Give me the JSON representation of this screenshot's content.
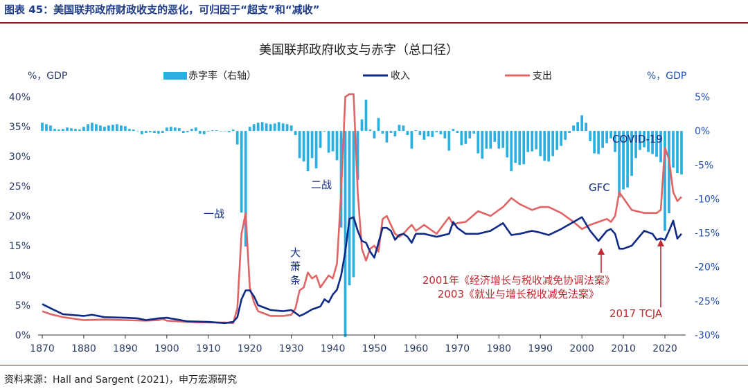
{
  "figure_title": "图表 45：美国联邦政府财政收支的恶化，可归因于“超支”和“减收”",
  "source": "资料来源：Hall and Sargent (2021)，申万宏源研究",
  "colors": {
    "deficit": "#2ab0e0",
    "revenue": "#0e2a84",
    "spending": "#e06464",
    "axis_left": "#2a3a66",
    "axis_right": "#1f4fb0",
    "title_blue": "#1f3c88",
    "rule_red": "#8a1c24",
    "annotation_red": "#c0282f"
  },
  "chart_data": {
    "type": "bar+line",
    "title": "美国联邦政府收支与赤字（总口径）",
    "left_unit": "%，GDP",
    "right_unit": "%，GDP",
    "legend": [
      {
        "key": "deficit",
        "label": "赤字率（右轴）",
        "symbol": "bar"
      },
      {
        "key": "revenue",
        "label": "收入",
        "symbol": "line"
      },
      {
        "key": "spending",
        "label": "支出",
        "symbol": "line"
      }
    ],
    "x_ticks": [
      "1870",
      "1880",
      "1890",
      "1900",
      "1910",
      "1920",
      "1930",
      "1940",
      "1950",
      "1960",
      "1970",
      "1980",
      "1990",
      "2000",
      "2010",
      "2020"
    ],
    "x_range": [
      1869,
      2025
    ],
    "y_left": {
      "range": [
        0,
        40
      ],
      "ticks": [
        "0%",
        "5%",
        "10%",
        "15%",
        "20%",
        "25%",
        "30%",
        "35%",
        "40%"
      ]
    },
    "y_right": {
      "range": [
        -30,
        5
      ],
      "ticks": [
        "-30%",
        "-25%",
        "-20%",
        "-15%",
        "-10%",
        "-5%",
        "0%",
        "5%"
      ]
    },
    "series": {
      "revenue": [
        [
          1870,
          5.2
        ],
        [
          1872,
          4.5
        ],
        [
          1875,
          3.5
        ],
        [
          1880,
          3.2
        ],
        [
          1882,
          3.4
        ],
        [
          1885,
          3.0
        ],
        [
          1890,
          2.9
        ],
        [
          1893,
          2.8
        ],
        [
          1895,
          2.5
        ],
        [
          1898,
          2.8
        ],
        [
          1900,
          2.9
        ],
        [
          1905,
          2.3
        ],
        [
          1910,
          2.2
        ],
        [
          1914,
          2.0
        ],
        [
          1916,
          2.2
        ],
        [
          1917,
          3.0
        ],
        [
          1918,
          6.0
        ],
        [
          1919,
          7.5
        ],
        [
          1920,
          7.5
        ],
        [
          1921,
          6.5
        ],
        [
          1922,
          5.0
        ],
        [
          1925,
          4.2
        ],
        [
          1928,
          4.0
        ],
        [
          1930,
          4.2
        ],
        [
          1932,
          3.2
        ],
        [
          1933,
          3.5
        ],
        [
          1935,
          4.3
        ],
        [
          1937,
          4.8
        ],
        [
          1938,
          6.0
        ],
        [
          1939,
          5.5
        ],
        [
          1940,
          6.8
        ],
        [
          1941,
          7.6
        ],
        [
          1942,
          10.0
        ],
        [
          1943,
          14.0
        ],
        [
          1944,
          19.5
        ],
        [
          1945,
          19.8
        ],
        [
          1946,
          17.5
        ],
        [
          1947,
          15.8
        ],
        [
          1948,
          15.5
        ],
        [
          1949,
          14.0
        ],
        [
          1950,
          13.0
        ],
        [
          1951,
          15.5
        ],
        [
          1952,
          18.0
        ],
        [
          1953,
          18.0
        ],
        [
          1954,
          17.5
        ],
        [
          1955,
          16.0
        ],
        [
          1956,
          16.8
        ],
        [
          1957,
          17.0
        ],
        [
          1958,
          16.5
        ],
        [
          1959,
          15.5
        ],
        [
          1960,
          17.0
        ],
        [
          1962,
          17.0
        ],
        [
          1965,
          16.5
        ],
        [
          1968,
          17.0
        ],
        [
          1969,
          19.0
        ],
        [
          1970,
          18.0
        ],
        [
          1972,
          17.0
        ],
        [
          1975,
          17.0
        ],
        [
          1978,
          17.5
        ],
        [
          1981,
          18.8
        ],
        [
          1983,
          16.8
        ],
        [
          1985,
          17.0
        ],
        [
          1988,
          17.5
        ],
        [
          1990,
          17.2
        ],
        [
          1992,
          16.8
        ],
        [
          1995,
          17.8
        ],
        [
          1998,
          19.0
        ],
        [
          2000,
          19.8
        ],
        [
          2002,
          17.5
        ],
        [
          2004,
          15.8
        ],
        [
          2006,
          17.5
        ],
        [
          2007,
          17.8
        ],
        [
          2008,
          17.0
        ],
        [
          2009,
          14.5
        ],
        [
          2010,
          14.5
        ],
        [
          2012,
          15.0
        ],
        [
          2015,
          17.5
        ],
        [
          2017,
          17.0
        ],
        [
          2018,
          16.0
        ],
        [
          2019,
          16.2
        ],
        [
          2020,
          16.0
        ],
        [
          2021,
          17.5
        ],
        [
          2022,
          19.2
        ],
        [
          2023,
          16.2
        ],
        [
          2024,
          17.0
        ]
      ],
      "spending": [
        [
          1870,
          4.0
        ],
        [
          1872,
          3.5
        ],
        [
          1875,
          3.0
        ],
        [
          1880,
          2.5
        ],
        [
          1885,
          2.6
        ],
        [
          1890,
          2.5
        ],
        [
          1895,
          2.4
        ],
        [
          1898,
          2.5
        ],
        [
          1899,
          2.7
        ],
        [
          1900,
          2.4
        ],
        [
          1905,
          2.2
        ],
        [
          1910,
          2.1
        ],
        [
          1914,
          2.1
        ],
        [
          1916,
          2.0
        ],
        [
          1917,
          4.5
        ],
        [
          1918,
          17.0
        ],
        [
          1919,
          20.5
        ],
        [
          1920,
          8.0
        ],
        [
          1921,
          5.5
        ],
        [
          1922,
          4.0
        ],
        [
          1925,
          3.2
        ],
        [
          1928,
          3.2
        ],
        [
          1930,
          3.4
        ],
        [
          1931,
          4.5
        ],
        [
          1932,
          7.5
        ],
        [
          1933,
          8.0
        ],
        [
          1934,
          10.5
        ],
        [
          1935,
          9.5
        ],
        [
          1936,
          10.0
        ],
        [
          1937,
          8.0
        ],
        [
          1938,
          9.0
        ],
        [
          1939,
          10.0
        ],
        [
          1940,
          9.5
        ],
        [
          1941,
          12.0
        ],
        [
          1942,
          24.0
        ],
        [
          1943,
          40.0
        ],
        [
          1944,
          41.5
        ],
        [
          1945,
          40.5
        ],
        [
          1946,
          24.0
        ],
        [
          1947,
          14.5
        ],
        [
          1948,
          12.5
        ],
        [
          1949,
          14.5
        ],
        [
          1950,
          15.0
        ],
        [
          1951,
          14.0
        ],
        [
          1952,
          19.5
        ],
        [
          1953,
          20.0
        ],
        [
          1954,
          18.5
        ],
        [
          1955,
          17.0
        ],
        [
          1956,
          16.5
        ],
        [
          1957,
          17.0
        ],
        [
          1958,
          17.8
        ],
        [
          1959,
          18.5
        ],
        [
          1960,
          17.5
        ],
        [
          1962,
          18.5
        ],
        [
          1965,
          17.0
        ],
        [
          1968,
          19.8
        ],
        [
          1969,
          18.5
        ],
        [
          1970,
          18.8
        ],
        [
          1972,
          19.0
        ],
        [
          1975,
          20.8
        ],
        [
          1978,
          20.0
        ],
        [
          1981,
          21.5
        ],
        [
          1983,
          23.0
        ],
        [
          1985,
          22.0
        ],
        [
          1988,
          21.0
        ],
        [
          1990,
          21.5
        ],
        [
          1992,
          21.5
        ],
        [
          1995,
          20.5
        ],
        [
          1998,
          19.0
        ],
        [
          2000,
          17.8
        ],
        [
          2002,
          18.5
        ],
        [
          2004,
          19.0
        ],
        [
          2006,
          19.5
        ],
        [
          2007,
          19.0
        ],
        [
          2008,
          20.0
        ],
        [
          2009,
          24.0
        ],
        [
          2010,
          23.0
        ],
        [
          2012,
          21.0
        ],
        [
          2015,
          20.5
        ],
        [
          2018,
          20.5
        ],
        [
          2019,
          21.0
        ],
        [
          2020,
          31.5
        ],
        [
          2021,
          29.5
        ],
        [
          2022,
          24.0
        ],
        [
          2023,
          22.5
        ],
        [
          2024,
          23.2
        ]
      ],
      "deficit": [
        [
          1870,
          1.2
        ],
        [
          1871,
          1.0
        ],
        [
          1872,
          0.8
        ],
        [
          1873,
          0.3
        ],
        [
          1874,
          0.2
        ],
        [
          1875,
          0.3
        ],
        [
          1876,
          0.5
        ],
        [
          1877,
          0.4
        ],
        [
          1878,
          0.3
        ],
        [
          1879,
          0.2
        ],
        [
          1880,
          0.6
        ],
        [
          1881,
          1.0
        ],
        [
          1882,
          1.2
        ],
        [
          1883,
          1.0
        ],
        [
          1884,
          0.8
        ],
        [
          1885,
          0.6
        ],
        [
          1886,
          0.8
        ],
        [
          1887,
          0.9
        ],
        [
          1888,
          1.0
        ],
        [
          1889,
          0.8
        ],
        [
          1890,
          0.7
        ],
        [
          1891,
          0.3
        ],
        [
          1892,
          0.2
        ],
        [
          1893,
          0.0
        ],
        [
          1894,
          -0.5
        ],
        [
          1895,
          -0.3
        ],
        [
          1896,
          -0.2
        ],
        [
          1897,
          -0.3
        ],
        [
          1898,
          -0.4
        ],
        [
          1899,
          -0.3
        ],
        [
          1900,
          0.5
        ],
        [
          1901,
          0.6
        ],
        [
          1902,
          0.5
        ],
        [
          1903,
          0.4
        ],
        [
          1904,
          -0.3
        ],
        [
          1905,
          -0.2
        ],
        [
          1906,
          0.3
        ],
        [
          1907,
          0.5
        ],
        [
          1908,
          -0.4
        ],
        [
          1909,
          -0.5
        ],
        [
          1910,
          -0.1
        ],
        [
          1911,
          0.1
        ],
        [
          1912,
          0.1
        ],
        [
          1913,
          0.0
        ],
        [
          1914,
          0.0
        ],
        [
          1915,
          -0.2
        ],
        [
          1916,
          0.2
        ],
        [
          1917,
          -2.0
        ],
        [
          1918,
          -12.0
        ],
        [
          1919,
          -17.0
        ],
        [
          1920,
          0.6
        ],
        [
          1921,
          1.0
        ],
        [
          1922,
          1.2
        ],
        [
          1923,
          1.3
        ],
        [
          1924,
          1.1
        ],
        [
          1925,
          1.0
        ],
        [
          1926,
          1.1
        ],
        [
          1927,
          1.3
        ],
        [
          1928,
          1.1
        ],
        [
          1929,
          1.0
        ],
        [
          1930,
          0.8
        ],
        [
          1931,
          -0.6
        ],
        [
          1932,
          -4.0
        ],
        [
          1933,
          -4.5
        ],
        [
          1934,
          -5.9
        ],
        [
          1935,
          -4.0
        ],
        [
          1936,
          -5.5
        ],
        [
          1937,
          -2.5
        ],
        [
          1938,
          -0.1
        ],
        [
          1939,
          -3.2
        ],
        [
          1940,
          -3.0
        ],
        [
          1941,
          -4.3
        ],
        [
          1942,
          -14.2
        ],
        [
          1943,
          -30.3
        ],
        [
          1944,
          -22.7
        ],
        [
          1945,
          -21.5
        ],
        [
          1946,
          -7.2
        ],
        [
          1947,
          1.7
        ],
        [
          1948,
          4.6
        ],
        [
          1949,
          0.2
        ],
        [
          1950,
          -1.1
        ],
        [
          1951,
          1.9
        ],
        [
          1952,
          -0.4
        ],
        [
          1953,
          -1.7
        ],
        [
          1954,
          -0.3
        ],
        [
          1955,
          -0.8
        ],
        [
          1956,
          0.9
        ],
        [
          1957,
          0.8
        ],
        [
          1958,
          -0.6
        ],
        [
          1959,
          -2.6
        ],
        [
          1960,
          0.1
        ],
        [
          1961,
          -0.6
        ],
        [
          1962,
          -1.3
        ],
        [
          1963,
          -0.8
        ],
        [
          1964,
          -0.9
        ],
        [
          1965,
          -0.2
        ],
        [
          1966,
          -0.5
        ],
        [
          1967,
          -1.1
        ],
        [
          1968,
          -2.9
        ],
        [
          1969,
          0.3
        ],
        [
          1970,
          -0.3
        ],
        [
          1971,
          -2.1
        ],
        [
          1972,
          -1.9
        ],
        [
          1973,
          -1.1
        ],
        [
          1974,
          -0.4
        ],
        [
          1975,
          -3.3
        ],
        [
          1976,
          -4.1
        ],
        [
          1977,
          -2.6
        ],
        [
          1978,
          -2.6
        ],
        [
          1979,
          -1.6
        ],
        [
          1980,
          -2.6
        ],
        [
          1981,
          -2.5
        ],
        [
          1982,
          -3.9
        ],
        [
          1983,
          -5.9
        ],
        [
          1984,
          -4.7
        ],
        [
          1985,
          -5.0
        ],
        [
          1986,
          -4.9
        ],
        [
          1987,
          -3.1
        ],
        [
          1988,
          -3.0
        ],
        [
          1989,
          -2.7
        ],
        [
          1990,
          -3.7
        ],
        [
          1991,
          -4.4
        ],
        [
          1992,
          -4.5
        ],
        [
          1993,
          -3.7
        ],
        [
          1994,
          -2.8
        ],
        [
          1995,
          -2.2
        ],
        [
          1996,
          -1.3
        ],
        [
          1997,
          -0.3
        ],
        [
          1998,
          0.8
        ],
        [
          1999,
          1.3
        ],
        [
          2000,
          2.3
        ],
        [
          2001,
          1.2
        ],
        [
          2002,
          -1.5
        ],
        [
          2003,
          -3.3
        ],
        [
          2004,
          -3.4
        ],
        [
          2005,
          -2.5
        ],
        [
          2006,
          -1.8
        ],
        [
          2007,
          -1.1
        ],
        [
          2008,
          -3.1
        ],
        [
          2009,
          -9.8
        ],
        [
          2010,
          -8.6
        ],
        [
          2011,
          -8.3
        ],
        [
          2012,
          -6.6
        ],
        [
          2013,
          -4.0
        ],
        [
          2014,
          -2.8
        ],
        [
          2015,
          -2.4
        ],
        [
          2016,
          -3.1
        ],
        [
          2017,
          -3.4
        ],
        [
          2018,
          -3.8
        ],
        [
          2019,
          -4.6
        ],
        [
          2020,
          -14.7
        ],
        [
          2021,
          -12.1
        ],
        [
          2022,
          -5.4
        ],
        [
          2023,
          -6.2
        ],
        [
          2024,
          -6.4
        ]
      ]
    },
    "annotations": [
      {
        "text": "一战",
        "color": "navy"
      },
      {
        "text": "二战",
        "color": "navy"
      },
      {
        "text": "大萧条",
        "color": "navy",
        "vertical": true
      },
      {
        "text": "GFC",
        "color": "navy"
      },
      {
        "text": "COVID-19",
        "color": "navy"
      },
      {
        "text": "2001年《经济增长与税收减免协调法案》",
        "color": "red"
      },
      {
        "text": "2003《就业与增长税收减免法案》",
        "color": "red"
      },
      {
        "text": "2017 TCJA",
        "color": "red"
      }
    ]
  }
}
